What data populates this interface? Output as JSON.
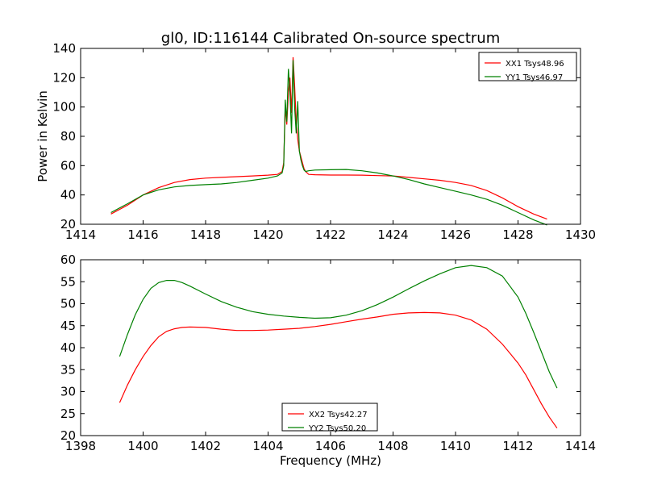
{
  "chart_data": [
    {
      "type": "line",
      "title": "gl0, ID:116144 Calibrated On-source spectrum",
      "xlabel": "",
      "ylabel": "Power in Kelvin",
      "xlim": [
        1414,
        1430
      ],
      "ylim": [
        20,
        140
      ],
      "xticks": [
        "1414",
        "1416",
        "1418",
        "1420",
        "1422",
        "1424",
        "1426",
        "1428",
        "1430"
      ],
      "yticks": [
        "20",
        "40",
        "60",
        "80",
        "100",
        "120",
        "140"
      ],
      "legend_position": "top-right",
      "grid": false,
      "series": [
        {
          "name": "XX1 Tsys48.96",
          "color": "#ff0000",
          "x": [
            1414.97,
            1415.5,
            1416.0,
            1416.5,
            1417.0,
            1417.5,
            1418.0,
            1418.5,
            1419.0,
            1419.5,
            1420.0,
            1420.3,
            1420.45,
            1420.5,
            1420.55,
            1420.6,
            1420.65,
            1420.7,
            1420.75,
            1420.8,
            1420.85,
            1420.9,
            1420.95,
            1421.0,
            1421.05,
            1421.1,
            1421.15,
            1421.2,
            1421.3,
            1421.5,
            1422.0,
            1422.5,
            1423.0,
            1423.5,
            1424.0,
            1424.5,
            1425.0,
            1425.5,
            1426.0,
            1426.5,
            1427.0,
            1427.5,
            1428.0,
            1428.5,
            1428.93
          ],
          "y": [
            27,
            33,
            40,
            45,
            48.5,
            50.5,
            51.5,
            52,
            52.5,
            53,
            53.5,
            54,
            56,
            62,
            100,
            88,
            110,
            120,
            96,
            134,
            115,
            90,
            78,
            70,
            66,
            62,
            58,
            56,
            54,
            53.8,
            53.6,
            53.6,
            53.5,
            53.2,
            53,
            52,
            51,
            50,
            48.5,
            46.5,
            43,
            38,
            32,
            27,
            23.5
          ]
        },
        {
          "name": "YY1 Tsys46.97",
          "color": "#008000",
          "x": [
            1414.97,
            1415.5,
            1416.0,
            1416.5,
            1417.0,
            1417.5,
            1418.0,
            1418.5,
            1419.0,
            1419.5,
            1420.0,
            1420.3,
            1420.45,
            1420.5,
            1420.55,
            1420.6,
            1420.65,
            1420.7,
            1420.75,
            1420.8,
            1420.85,
            1420.9,
            1420.95,
            1421.0,
            1421.05,
            1421.1,
            1421.15,
            1421.2,
            1421.3,
            1421.5,
            1422.0,
            1422.5,
            1423.0,
            1423.5,
            1424.0,
            1424.5,
            1425.0,
            1425.5,
            1426.0,
            1426.5,
            1427.0,
            1427.5,
            1428.0,
            1428.5,
            1428.93
          ],
          "y": [
            28,
            34,
            40,
            43.5,
            45.5,
            46.5,
            47,
            47.5,
            48.5,
            50,
            51.5,
            53,
            55,
            60,
            105,
            90,
            126,
            110,
            82,
            132,
            100,
            82,
            104,
            70,
            64,
            60,
            57,
            56,
            56.5,
            57,
            57.2,
            57.4,
            56.5,
            55,
            53,
            50.5,
            47.5,
            45,
            42.5,
            40,
            37,
            33,
            28,
            23,
            19.5
          ]
        }
      ]
    },
    {
      "type": "line",
      "title": "",
      "xlabel": "Frequency (MHz)",
      "ylabel": "",
      "xlim": [
        1398,
        1414
      ],
      "ylim": [
        20,
        60
      ],
      "xticks": [
        "1398",
        "1400",
        "1402",
        "1404",
        "1406",
        "1408",
        "1410",
        "1412",
        "1414"
      ],
      "yticks": [
        "20",
        "25",
        "30",
        "35",
        "40",
        "45",
        "50",
        "55",
        "60"
      ],
      "legend_position": "bottom-center",
      "grid": false,
      "series": [
        {
          "name": "XX2 Tsys42.27",
          "color": "#ff0000",
          "x": [
            1399.25,
            1399.5,
            1399.75,
            1400.0,
            1400.25,
            1400.5,
            1400.75,
            1401.0,
            1401.25,
            1401.5,
            1402.0,
            1402.5,
            1403.0,
            1403.5,
            1404.0,
            1404.5,
            1405.0,
            1405.5,
            1406.0,
            1406.5,
            1407.0,
            1407.5,
            1408.0,
            1408.5,
            1409.0,
            1409.5,
            1410.0,
            1410.5,
            1411.0,
            1411.5,
            1412.0,
            1412.25,
            1412.5,
            1412.75,
            1413.0,
            1413.25
          ],
          "y": [
            27.5,
            31.5,
            35,
            38,
            40.5,
            42.5,
            43.7,
            44.3,
            44.6,
            44.7,
            44.6,
            44.2,
            43.9,
            43.9,
            44,
            44.2,
            44.4,
            44.8,
            45.3,
            45.9,
            46.5,
            47,
            47.6,
            47.9,
            48,
            47.9,
            47.4,
            46.3,
            44.2,
            40.8,
            36.5,
            33.8,
            30.5,
            27.2,
            24.2,
            21.7
          ]
        },
        {
          "name": "YY2 Tsys50.20",
          "color": "#008000",
          "x": [
            1399.25,
            1399.5,
            1399.75,
            1400.0,
            1400.25,
            1400.5,
            1400.75,
            1401.0,
            1401.25,
            1401.5,
            1402.0,
            1402.5,
            1403.0,
            1403.5,
            1404.0,
            1404.5,
            1405.0,
            1405.5,
            1406.0,
            1406.5,
            1407.0,
            1407.5,
            1408.0,
            1408.5,
            1409.0,
            1409.5,
            1410.0,
            1410.5,
            1411.0,
            1411.5,
            1412.0,
            1412.25,
            1412.5,
            1412.75,
            1413.0,
            1413.25
          ],
          "y": [
            38,
            43,
            47.5,
            51,
            53.5,
            54.8,
            55.3,
            55.3,
            54.8,
            54,
            52.2,
            50.5,
            49.2,
            48.2,
            47.6,
            47.2,
            46.9,
            46.7,
            46.8,
            47.4,
            48.4,
            49.8,
            51.5,
            53.4,
            55.2,
            56.8,
            58.2,
            58.7,
            58.2,
            56.3,
            51.5,
            47.8,
            43.5,
            39,
            34.5,
            30.8
          ]
        }
      ]
    }
  ]
}
